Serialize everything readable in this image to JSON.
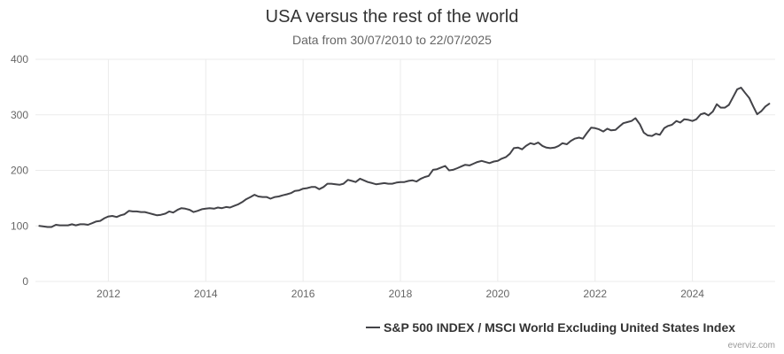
{
  "chart_data": {
    "type": "line",
    "title": "USA versus the rest of the world",
    "subtitle": "Data from 30/07/2010 to 22/07/2025",
    "xlabel": "",
    "ylabel": "",
    "ylim": [
      0,
      400
    ],
    "yticks": [
      0,
      100,
      200,
      300,
      400
    ],
    "xlim": [
      2010.5,
      2025.7
    ],
    "xticks": [
      2012,
      2014,
      2016,
      2018,
      2020,
      2022,
      2024
    ],
    "grid": true,
    "legend_position": "bottom-right",
    "series": [
      {
        "name": "S&P 500 INDEX / MSCI World Excluding United States Index",
        "color": "#434348",
        "x": [
          2010.58,
          2010.67,
          2010.75,
          2010.83,
          2010.92,
          2011.0,
          2011.08,
          2011.17,
          2011.25,
          2011.33,
          2011.42,
          2011.5,
          2011.58,
          2011.67,
          2011.75,
          2011.83,
          2011.92,
          2012.0,
          2012.08,
          2012.17,
          2012.25,
          2012.33,
          2012.42,
          2012.5,
          2012.58,
          2012.67,
          2012.75,
          2012.83,
          2012.92,
          2013.0,
          2013.08,
          2013.17,
          2013.25,
          2013.33,
          2013.42,
          2013.5,
          2013.58,
          2013.67,
          2013.75,
          2013.83,
          2013.92,
          2014.0,
          2014.08,
          2014.17,
          2014.25,
          2014.33,
          2014.42,
          2014.5,
          2014.58,
          2014.67,
          2014.75,
          2014.83,
          2014.92,
          2015.0,
          2015.08,
          2015.17,
          2015.25,
          2015.33,
          2015.42,
          2015.5,
          2015.58,
          2015.67,
          2015.75,
          2015.83,
          2015.92,
          2016.0,
          2016.08,
          2016.17,
          2016.25,
          2016.33,
          2016.42,
          2016.5,
          2016.58,
          2016.67,
          2016.75,
          2016.83,
          2016.92,
          2017.0,
          2017.08,
          2017.17,
          2017.25,
          2017.33,
          2017.42,
          2017.5,
          2017.58,
          2017.67,
          2017.75,
          2017.83,
          2017.92,
          2018.0,
          2018.08,
          2018.17,
          2018.25,
          2018.33,
          2018.42,
          2018.5,
          2018.58,
          2018.67,
          2018.75,
          2018.83,
          2018.92,
          2019.0,
          2019.08,
          2019.17,
          2019.25,
          2019.33,
          2019.42,
          2019.5,
          2019.58,
          2019.67,
          2019.75,
          2019.83,
          2019.92,
          2020.0,
          2020.08,
          2020.17,
          2020.25,
          2020.33,
          2020.42,
          2020.5,
          2020.58,
          2020.67,
          2020.75,
          2020.83,
          2020.92,
          2021.0,
          2021.08,
          2021.17,
          2021.25,
          2021.33,
          2021.42,
          2021.5,
          2021.58,
          2021.67,
          2021.75,
          2021.83,
          2021.92,
          2022.0,
          2022.08,
          2022.17,
          2022.25,
          2022.33,
          2022.42,
          2022.5,
          2022.58,
          2022.67,
          2022.75,
          2022.83,
          2022.92,
          2023.0,
          2023.08,
          2023.17,
          2023.25,
          2023.33,
          2023.42,
          2023.5,
          2023.58,
          2023.67,
          2023.75,
          2023.83,
          2023.92,
          2024.0,
          2024.08,
          2024.17,
          2024.25,
          2024.33,
          2024.42,
          2024.5,
          2024.58,
          2024.67,
          2024.75,
          2024.83,
          2024.92,
          2025.0,
          2025.08,
          2025.17,
          2025.25,
          2025.33,
          2025.42,
          2025.5,
          2025.58
        ],
        "values": [
          100,
          99,
          98,
          98,
          102,
          101,
          101,
          101,
          103,
          101,
          103,
          103,
          102,
          105,
          108,
          109,
          114,
          117,
          118,
          116,
          119,
          121,
          127,
          126,
          126,
          125,
          125,
          123,
          121,
          119,
          120,
          122,
          126,
          124,
          129,
          132,
          131,
          129,
          125,
          127,
          130,
          131,
          132,
          131,
          133,
          132,
          134,
          133,
          136,
          139,
          143,
          148,
          152,
          156,
          153,
          152,
          152,
          149,
          152,
          153,
          155,
          157,
          159,
          163,
          164,
          167,
          168,
          170,
          170,
          166,
          170,
          176,
          176,
          175,
          174,
          176,
          183,
          181,
          179,
          185,
          182,
          179,
          177,
          175,
          176,
          177,
          176,
          176,
          178,
          179,
          179,
          181,
          182,
          180,
          185,
          188,
          190,
          201,
          202,
          205,
          208,
          200,
          201,
          204,
          207,
          210,
          209,
          212,
          215,
          217,
          215,
          213,
          216,
          217,
          221,
          224,
          230,
          240,
          241,
          238,
          244,
          249,
          247,
          250,
          244,
          241,
          240,
          241,
          244,
          249,
          247,
          253,
          257,
          259,
          257,
          267,
          277,
          276,
          274,
          270,
          275,
          272,
          273,
          279,
          285,
          287,
          289,
          294,
          283,
          268,
          263,
          262,
          266,
          264,
          276,
          280,
          282,
          289,
          286,
          292,
          291,
          289,
          292,
          301,
          303,
          299,
          306,
          319,
          313,
          313,
          318,
          331,
          346,
          349,
          340,
          330,
          315,
          301,
          307,
          315,
          320
        ]
      }
    ]
  },
  "credit": "everviz.com"
}
